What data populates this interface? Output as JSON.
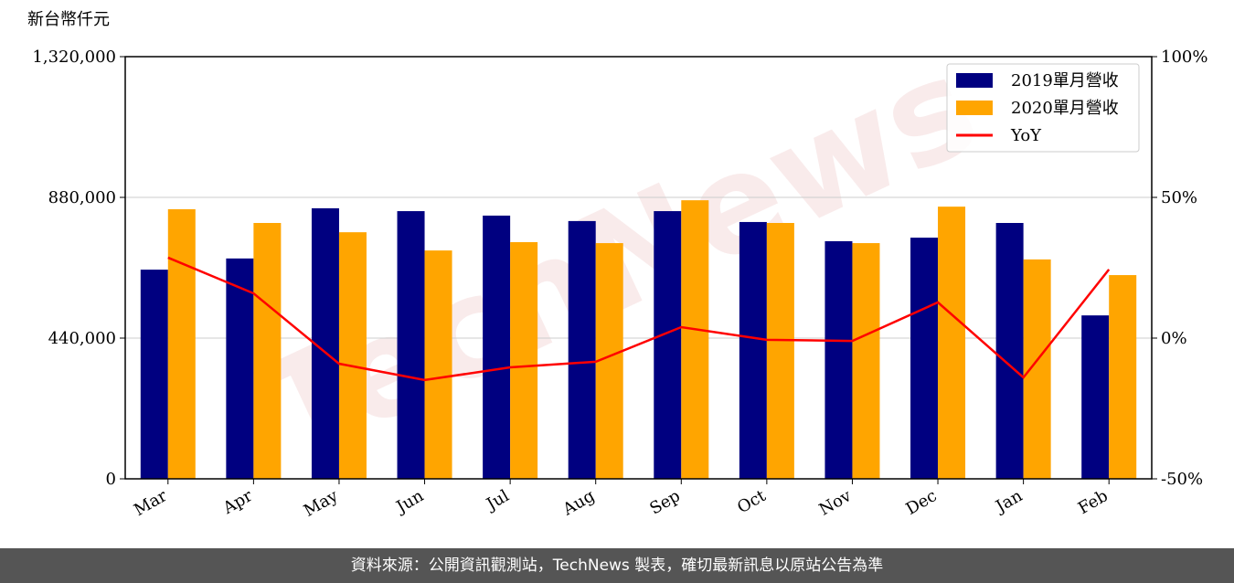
{
  "chart_data": {
    "type": "bar_line",
    "y_axis_label": "新台幣仟元",
    "watermark": "TechNews",
    "categories": [
      "Mar",
      "Apr",
      "May",
      "Jun",
      "Jul",
      "Aug",
      "Sep",
      "Oct",
      "Nov",
      "Dec",
      "Jan",
      "Feb"
    ],
    "series": [
      {
        "name": "2019單月營收",
        "color": "#000080",
        "type": "bar",
        "values": [
          654000,
          689000,
          846000,
          837000,
          823000,
          806000,
          837000,
          803000,
          743000,
          754000,
          800000,
          511000
        ]
      },
      {
        "name": "2020單月營收",
        "color": "#ffa500",
        "type": "bar",
        "values": [
          843000,
          800000,
          771000,
          714000,
          740000,
          737000,
          871000,
          800000,
          737000,
          851000,
          686000,
          637000
        ]
      },
      {
        "name": "YoY",
        "color": "#ff0000",
        "type": "line",
        "axis": "y2",
        "values": [
          28.6,
          15.9,
          -9.1,
          -14.9,
          -10.4,
          -8.4,
          3.9,
          -0.6,
          -1.0,
          12.7,
          -14.0,
          24.4
        ]
      }
    ],
    "ylim": [
      0,
      1320000
    ],
    "yticks": [
      0,
      {
        "value": 440000,
        "label": "440,000"
      },
      {
        "value": 880000,
        "label": "880,000"
      },
      {
        "value": 1320000,
        "label": "1,320,000"
      }
    ],
    "y2lim": [
      -50,
      100
    ],
    "y2ticks": [
      {
        "value": -50,
        "label": "-50%"
      },
      {
        "value": 0,
        "label": "0%"
      },
      {
        "value": 50,
        "label": "50%"
      },
      {
        "value": 100,
        "label": "100%"
      }
    ],
    "grid": true,
    "legend": "upper right"
  },
  "footer": "資料來源：公開資訊觀測站，TechNews 製表，確切最新訊息以原站公告為準"
}
